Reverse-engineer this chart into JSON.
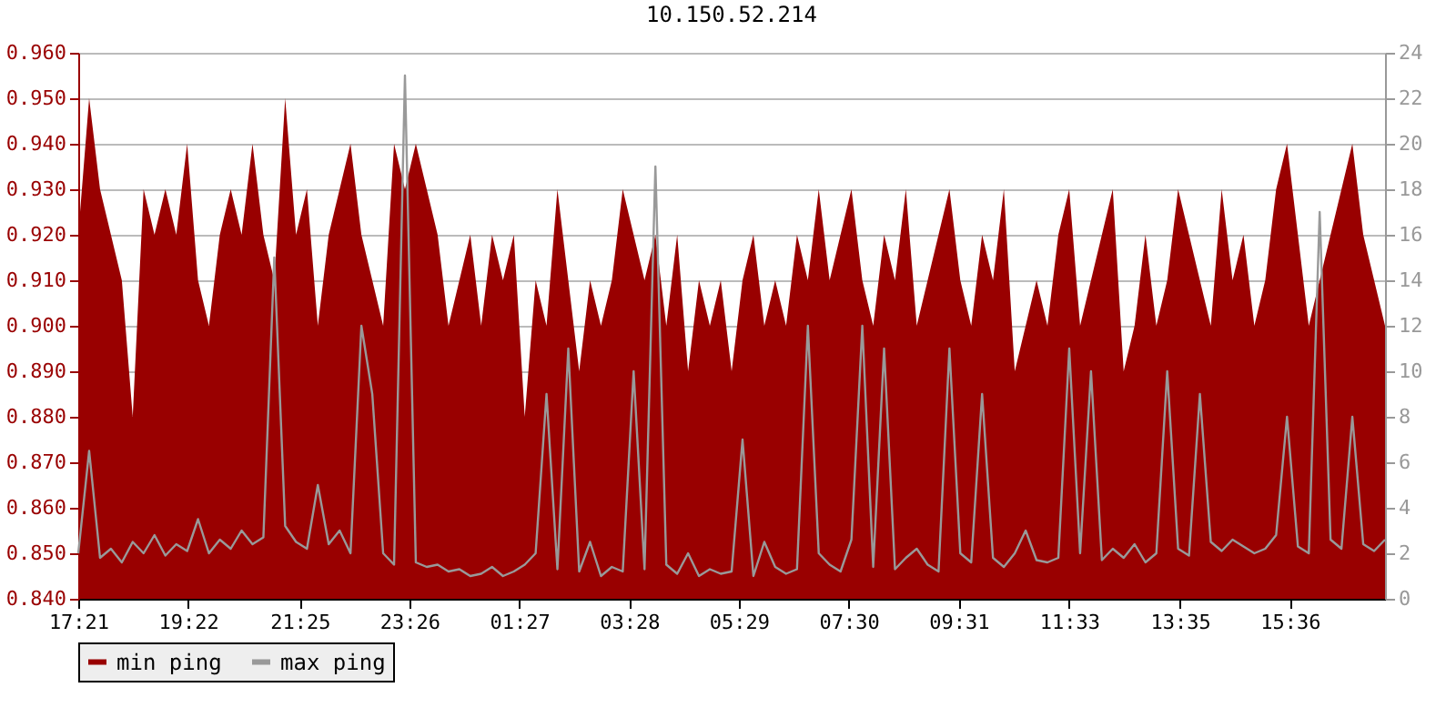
{
  "chart_data": {
    "type": "area",
    "title": "10.150.52.214",
    "x": [
      "--01-01T17:21",
      "--01-01T17:33",
      "--01-01T17:45",
      "--01-01T17:57",
      "--01-01T18:09",
      "--01-01T18:21",
      "--01-01T18:33",
      "--01-01T18:45",
      "--01-01T18:57",
      "--01-01T19:09",
      "--01-01T19:21",
      "--01-01T19:33",
      "--01-01T19:45",
      "--01-01T19:57",
      "--01-01T20:09",
      "--01-01T20:21",
      "--01-01T20:33",
      "--01-01T20:45",
      "--01-01T20:57",
      "--01-01T21:09",
      "--01-01T21:21",
      "--01-01T21:33",
      "--01-01T21:45",
      "--01-01T21:57",
      "--01-01T22:09",
      "--01-01T22:21",
      "--01-01T22:33",
      "--01-01T22:45",
      "--01-01T22:57",
      "--01-01T23:09",
      "--01-01T23:21",
      "--01-01T23:33",
      "--01-01T23:45",
      "--01-01T23:57",
      "--01-02T00:09",
      "--01-02T00:21",
      "--01-02T00:33",
      "--01-02T00:45",
      "--01-02T00:57",
      "--01-02T01:09",
      "--01-02T01:21",
      "--01-02T01:33",
      "--01-02T01:45",
      "--01-02T01:57",
      "--01-02T02:09",
      "--01-02T02:21",
      "--01-02T02:33",
      "--01-02T02:45",
      "--01-02T02:57",
      "--01-02T03:09",
      "--01-02T03:21",
      "--01-02T03:33",
      "--01-02T03:45",
      "--01-02T03:57",
      "--01-02T04:09",
      "--01-02T04:21",
      "--01-02T04:33",
      "--01-02T04:45",
      "--01-02T04:57",
      "--01-02T05:09",
      "--01-02T05:21",
      "--01-02T05:33",
      "--01-02T05:45",
      "--01-02T05:57",
      "--01-02T06:09",
      "--01-02T06:21",
      "--01-02T06:33",
      "--01-02T06:45",
      "--01-02T06:57",
      "--01-02T07:09",
      "--01-02T07:21",
      "--01-02T07:33",
      "--01-02T07:45",
      "--01-02T07:57",
      "--01-02T08:09",
      "--01-02T08:21",
      "--01-02T08:33",
      "--01-02T08:45",
      "--01-02T08:57",
      "--01-02T09:09",
      "--01-02T09:21",
      "--01-02T09:33",
      "--01-02T09:45",
      "--01-02T09:57",
      "--01-02T10:09",
      "--01-02T10:21",
      "--01-02T10:33",
      "--01-02T10:45",
      "--01-02T10:57",
      "--01-02T11:09",
      "--01-02T11:21",
      "--01-02T11:33",
      "--01-02T11:45",
      "--01-02T11:57",
      "--01-02T12:09",
      "--01-02T12:21",
      "--01-02T12:33",
      "--01-02T12:45",
      "--01-02T12:57",
      "--01-02T13:09",
      "--01-02T13:21",
      "--01-02T13:33",
      "--01-02T13:45",
      "--01-02T13:57",
      "--01-02T14:09",
      "--01-02T14:21",
      "--01-02T14:33",
      "--01-02T14:45",
      "--01-02T14:57",
      "--01-02T15:09",
      "--01-02T15:21",
      "--01-02T15:33",
      "--01-02T15:45",
      "--01-02T15:57",
      "--01-02T16:09",
      "--01-02T16:21",
      "--01-02T16:33",
      "--01-02T16:45",
      "--01-02T16:57",
      "--01-02T17:09",
      "--01-02T17:21"
    ],
    "series": [
      {
        "name": "min ping",
        "color": "#990000",
        "values": [
          0.92,
          0.95,
          0.93,
          0.92,
          0.91,
          0.88,
          0.93,
          0.92,
          0.93,
          0.92,
          0.94,
          0.91,
          0.9,
          0.92,
          0.93,
          0.92,
          0.94,
          0.92,
          0.91,
          0.95,
          0.92,
          0.93,
          0.9,
          0.92,
          0.93,
          0.94,
          0.92,
          0.91,
          0.9,
          0.94,
          0.93,
          0.94,
          0.93,
          0.92,
          0.9,
          0.91,
          0.92,
          0.9,
          0.92,
          0.91,
          0.92,
          0.88,
          0.91,
          0.9,
          0.93,
          0.91,
          0.89,
          0.91,
          0.9,
          0.91,
          0.93,
          0.92,
          0.91,
          0.92,
          0.9,
          0.92,
          0.89,
          0.91,
          0.9,
          0.91,
          0.89,
          0.91,
          0.92,
          0.9,
          0.91,
          0.9,
          0.92,
          0.91,
          0.93,
          0.91,
          0.92,
          0.93,
          0.91,
          0.9,
          0.92,
          0.91,
          0.93,
          0.9,
          0.91,
          0.92,
          0.93,
          0.91,
          0.9,
          0.92,
          0.91,
          0.93,
          0.89,
          0.9,
          0.91,
          0.9,
          0.92,
          0.93,
          0.9,
          0.91,
          0.92,
          0.93,
          0.89,
          0.9,
          0.92,
          0.9,
          0.91,
          0.93,
          0.92,
          0.91,
          0.9,
          0.93,
          0.91,
          0.92,
          0.9,
          0.91,
          0.93,
          0.94,
          0.92,
          0.9,
          0.91,
          0.92,
          0.93,
          0.94,
          0.92,
          0.91,
          0.9
        ]
      },
      {
        "name": "max ping",
        "type": "line",
        "axis": "y2",
        "color": "#999999",
        "values": [
          2.0,
          6.5,
          1.8,
          2.2,
          1.6,
          2.5,
          2.0,
          2.8,
          1.9,
          2.4,
          2.1,
          3.5,
          2.0,
          2.6,
          2.2,
          3.0,
          2.4,
          2.7,
          15,
          3.2,
          2.5,
          2.2,
          5.0,
          2.4,
          3.0,
          2.0,
          12,
          9,
          2.0,
          1.5,
          23,
          1.6,
          1.4,
          1.5,
          1.2,
          1.3,
          1.0,
          1.1,
          1.4,
          1.0,
          1.2,
          1.5,
          2.0,
          9,
          1.3,
          11,
          1.2,
          2.5,
          1.0,
          1.4,
          1.2,
          10,
          1.3,
          19,
          1.5,
          1.1,
          2.0,
          1.0,
          1.3,
          1.1,
          1.2,
          7,
          1.0,
          2.5,
          1.4,
          1.1,
          1.3,
          12,
          2.0,
          1.5,
          1.2,
          2.6,
          12,
          1.4,
          11,
          1.3,
          1.8,
          2.2,
          1.5,
          1.2,
          11,
          2.0,
          1.6,
          9,
          1.8,
          1.4,
          2.0,
          3.0,
          1.7,
          1.6,
          1.8,
          11,
          2.0,
          10,
          1.7,
          2.2,
          1.8,
          2.4,
          1.6,
          2.0,
          10,
          2.2,
          1.9,
          9,
          2.5,
          2.1,
          2.6,
          2.3,
          2.0,
          2.2,
          2.8,
          8,
          2.3,
          2.0,
          17,
          2.6,
          2.2,
          8,
          2.4,
          2.1,
          2.6
        ]
      }
    ],
    "xlim": [
      "--01-01T17:21",
      "--01-02T17:21"
    ],
    "xticks": [
      {
        "value": "--01-01T17:21",
        "label": "17:21"
      },
      {
        "value": "--01-01T19:22",
        "label": "19:22"
      },
      {
        "value": "--01-01T21:25",
        "label": "21:25"
      },
      {
        "value": "--01-01T23:26",
        "label": "23:26"
      },
      {
        "value": "--01-02T01:27",
        "label": "01:27"
      },
      {
        "value": "--01-02T03:28",
        "label": "03:28"
      },
      {
        "value": "--01-02T05:29",
        "label": "05:29"
      },
      {
        "value": "--01-02T07:30",
        "label": "07:30"
      },
      {
        "value": "--01-02T09:31",
        "label": "09:31"
      },
      {
        "value": "--01-02T11:33",
        "label": "11:33"
      },
      {
        "value": "--01-02T13:35",
        "label": "13:35"
      },
      {
        "value": "--01-02T15:36",
        "label": "15:36"
      }
    ],
    "ylim": [
      0.84,
      0.96
    ],
    "yticks": [
      {
        "value": 0.84,
        "label": "0.840"
      },
      {
        "value": 0.85,
        "label": "0.850"
      },
      {
        "value": 0.86,
        "label": "0.860"
      },
      {
        "value": 0.87,
        "label": "0.870"
      },
      {
        "value": 0.88,
        "label": "0.880"
      },
      {
        "value": 0.89,
        "label": "0.890"
      },
      {
        "value": 0.9,
        "label": "0.900"
      },
      {
        "value": 0.91,
        "label": "0.910"
      },
      {
        "value": 0.92,
        "label": "0.920"
      },
      {
        "value": 0.93,
        "label": "0.930"
      },
      {
        "value": 0.94,
        "label": "0.940"
      },
      {
        "value": 0.95,
        "label": "0.950"
      },
      {
        "value": 0.96,
        "label": "0.960"
      }
    ],
    "y2lim": [
      0,
      24
    ],
    "y2ticks": [
      0,
      2,
      4,
      6,
      8,
      10,
      12,
      14,
      16,
      18,
      20,
      22,
      24
    ],
    "grid": "y",
    "legend": "bottom"
  }
}
